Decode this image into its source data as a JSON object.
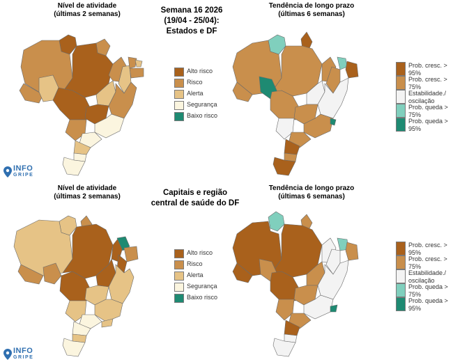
{
  "header": {
    "line1": "Semana 16 2026",
    "line2": "(19/04 - 25/04):",
    "line3": "Estados e DF"
  },
  "section2_header": {
    "line1": "Capitais e região",
    "line2": "central de saúde do DF"
  },
  "panels": {
    "activity_top": {
      "title1": "Nível de atividade",
      "title2": "(últimas 2 semanas)"
    },
    "trend_top": {
      "title1": "Tendência de longo prazo",
      "title2": "(últimas 6 semanas)"
    },
    "activity_bottom": {
      "title1": "Nível de atividade",
      "title2": "(últimas 2 semanas)"
    },
    "trend_bottom": {
      "title1": "Tendência de longo prazo",
      "title2": "(últimas 6 semanas)"
    }
  },
  "legend_activity": [
    {
      "label": "Alto risco",
      "color": "#a9611c"
    },
    {
      "label": "Risco",
      "color": "#c98f4c"
    },
    {
      "label": "Alerta",
      "color": "#e6c386"
    },
    {
      "label": "Segurança",
      "color": "#fbf5df"
    },
    {
      "label": "Baixo risco",
      "color": "#1e8a72"
    }
  ],
  "legend_trend": [
    {
      "label": "Prob. cresc. > 95%",
      "color": "#a9611c"
    },
    {
      "label": "Prob. cresc. > 75%",
      "color": "#c98f4c"
    },
    {
      "label": "Estabilidade./ oscilação",
      "color": "#f3f3f3"
    },
    {
      "label": "Prob. queda > 75%",
      "color": "#80cfbd"
    },
    {
      "label": "Prob. queda > 95%",
      "color": "#1e8a72"
    }
  ],
  "logo": {
    "line1": "INFO",
    "line2": "GRIPE",
    "color": "#2f6fb0"
  }
}
